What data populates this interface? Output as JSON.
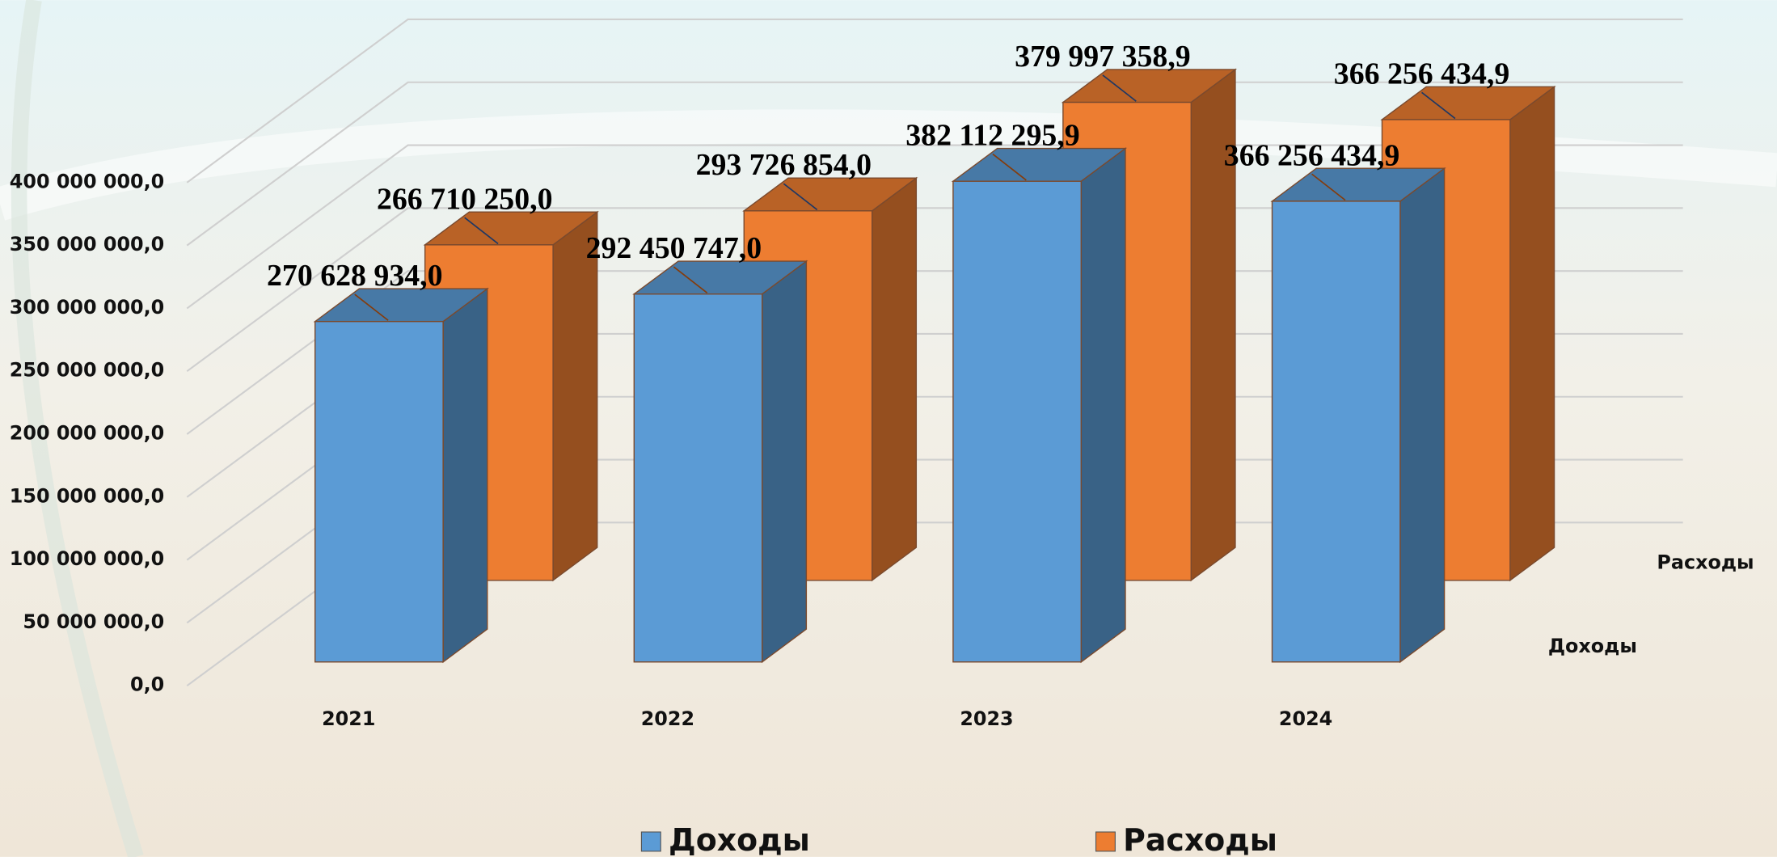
{
  "chart_data": {
    "type": "bar3d",
    "categories": [
      "2021",
      "2022",
      "2023",
      "2024"
    ],
    "series": [
      {
        "name": "Доходы",
        "color": "#5b9bd5",
        "values": [
          270628934.0,
          292450747.0,
          382112295.9,
          366256434.9
        ],
        "value_labels": [
          "270 628 934,0",
          "292 450 747,0",
          "382 112 295,9",
          "366 256 434,9"
        ]
      },
      {
        "name": "Расходы",
        "color": "#ed7d31",
        "values": [
          266710250.0,
          293726854.0,
          379997358.9,
          366256434.9
        ],
        "value_labels": [
          "266 710 250,0",
          "293 726 854,0",
          "379 997 358,9",
          "366 256 434,9"
        ]
      }
    ],
    "ylim": [
      0,
      400000000
    ],
    "yticks": [
      {
        "value": 0,
        "label": "0,0"
      },
      {
        "value": 50000000,
        "label": "50 000 000,0"
      },
      {
        "value": 100000000,
        "label": "100 000 000,0"
      },
      {
        "value": 150000000,
        "label": "150 000 000,0"
      },
      {
        "value": 200000000,
        "label": "200 000 000,0"
      },
      {
        "value": 250000000,
        "label": "250 000 000,0"
      },
      {
        "value": 300000000,
        "label": "300 000 000,0"
      },
      {
        "value": 350000000,
        "label": "350 000 000,0"
      },
      {
        "value": 400000000,
        "label": "400 000 000,0"
      }
    ],
    "grid": true,
    "legend": "bottom"
  }
}
